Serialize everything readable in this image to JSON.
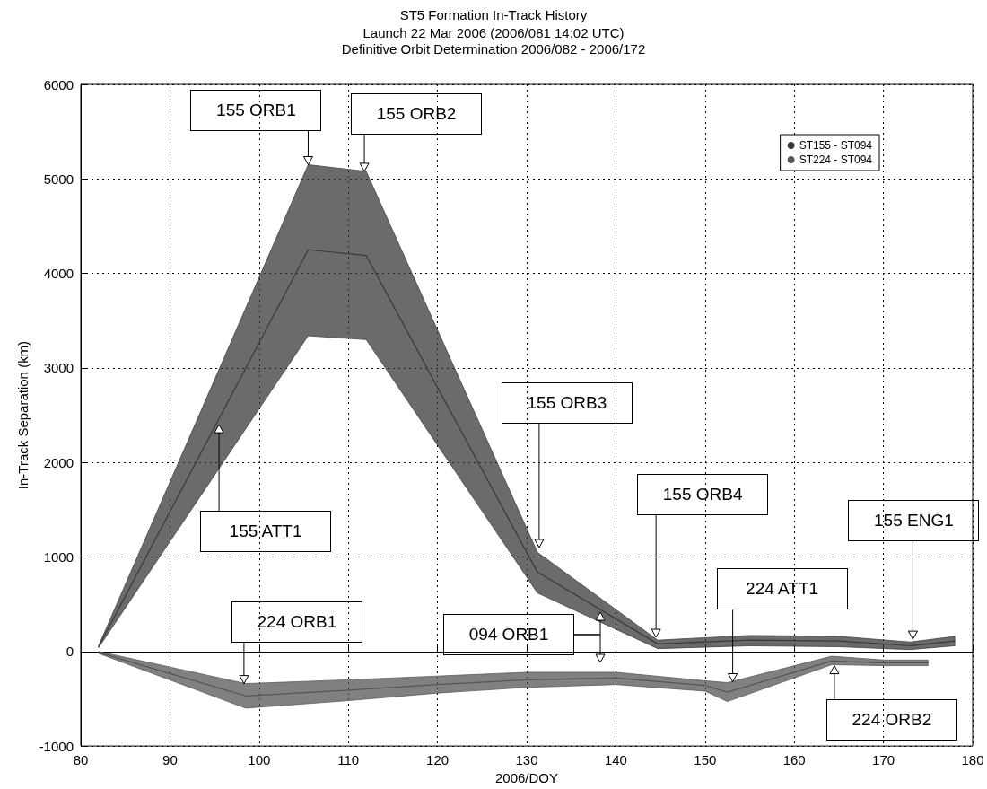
{
  "chart_data": {
    "type": "line",
    "title": "ST5 Formation In-Track History",
    "subtitle": "Launch 22 Mar 2006 (2006/081 14:02 UTC)\nDefinitive Orbit Determination 2006/082 - 2006/172",
    "xlabel": "2006/DOY",
    "ylabel": "In-Track Separation (km)",
    "series": [
      {
        "name": "ST155 - ST094",
        "color": "#3a3a3a",
        "x": [
          82,
          105.5,
          112,
          131.2,
          144.7,
          155,
          165,
          173,
          178
        ],
        "values": [
          50,
          4250,
          4190,
          840,
          80,
          120,
          110,
          60,
          110
        ],
        "upper": [
          60,
          5150,
          5080,
          1050,
          120,
          170,
          160,
          100,
          160
        ],
        "lower": [
          40,
          3340,
          3300,
          620,
          30,
          60,
          50,
          20,
          60
        ]
      },
      {
        "name": "ST224 - ST094",
        "color": "#555555",
        "x": [
          82,
          98.5,
          110,
          120,
          130,
          140,
          150,
          152.5,
          164.2,
          170,
          175
        ],
        "values": [
          -10,
          -470,
          -410,
          -350,
          -300,
          -280,
          -360,
          -430,
          -100,
          -120,
          -120
        ],
        "upper": [
          0,
          -340,
          -300,
          -260,
          -220,
          -220,
          -310,
          -330,
          -50,
          -90,
          -90
        ],
        "lower": [
          -20,
          -600,
          -520,
          -440,
          -380,
          -350,
          -420,
          -530,
          -140,
          -150,
          -150
        ]
      }
    ],
    "xlim": [
      80,
      180
    ],
    "xticks": [
      80,
      90,
      100,
      110,
      120,
      130,
      140,
      150,
      160,
      170,
      180
    ],
    "ylim": [
      -1000,
      6000
    ],
    "yticks": [
      -1000,
      0,
      1000,
      2000,
      3000,
      4000,
      5000,
      6000
    ],
    "grid": true,
    "legend": "top right",
    "annotations": [
      {
        "text": "155 ORB1",
        "x": 105.5,
        "y": 5150
      },
      {
        "text": "155 ORB2",
        "x": 111.8,
        "y": 5080
      },
      {
        "text": "155 ATT1",
        "x": 95.5,
        "y": 2400
      },
      {
        "text": "155 ORB3",
        "x": 131.4,
        "y": 1100
      },
      {
        "text": "155 ORB4",
        "x": 144.5,
        "y": 150
      },
      {
        "text": "155 ENG1",
        "x": 173.3,
        "y": 130
      },
      {
        "text": "224 ORB1",
        "x": 98.3,
        "y": -340
      },
      "094 ORB1",
      {
        "text": "224 ATT1",
        "x": 153.1,
        "y": -320
      },
      {
        "text": "224 ORB2",
        "x": 164.5,
        "y": -150
      }
    ]
  }
}
